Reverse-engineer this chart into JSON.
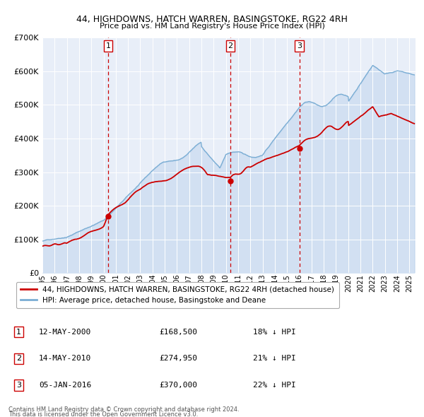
{
  "title": "44, HIGHDOWNS, HATCH WARREN, BASINGSTOKE, RG22 4RH",
  "subtitle": "Price paid vs. HM Land Registry's House Price Index (HPI)",
  "red_label": "44, HIGHDOWNS, HATCH WARREN, BASINGSTOKE, RG22 4RH (detached house)",
  "blue_label": "HPI: Average price, detached house, Basingstoke and Deane",
  "transactions": [
    {
      "num": 1,
      "date": "12-MAY-2000",
      "price": 168500,
      "year": 2000.37,
      "pct": "18% ↓ HPI"
    },
    {
      "num": 2,
      "date": "14-MAY-2010",
      "price": 274950,
      "year": 2010.37,
      "pct": "21% ↓ HPI"
    },
    {
      "num": 3,
      "date": "05-JAN-2016",
      "price": 370000,
      "year": 2016.01,
      "pct": "22% ↓ HPI"
    }
  ],
  "footnote1": "Contains HM Land Registry data © Crown copyright and database right 2024.",
  "footnote2": "This data is licensed under the Open Government Licence v3.0.",
  "ylim": [
    0,
    700000
  ],
  "xlim_start": 1995.0,
  "xlim_end": 2025.5,
  "background_color": "#ffffff",
  "plot_bg_color": "#e8eef8",
  "grid_color": "#ffffff",
  "red_color": "#cc0000",
  "blue_color": "#7aadd4",
  "blue_fill": "#aac8e8",
  "vline_color": "#cc0000"
}
